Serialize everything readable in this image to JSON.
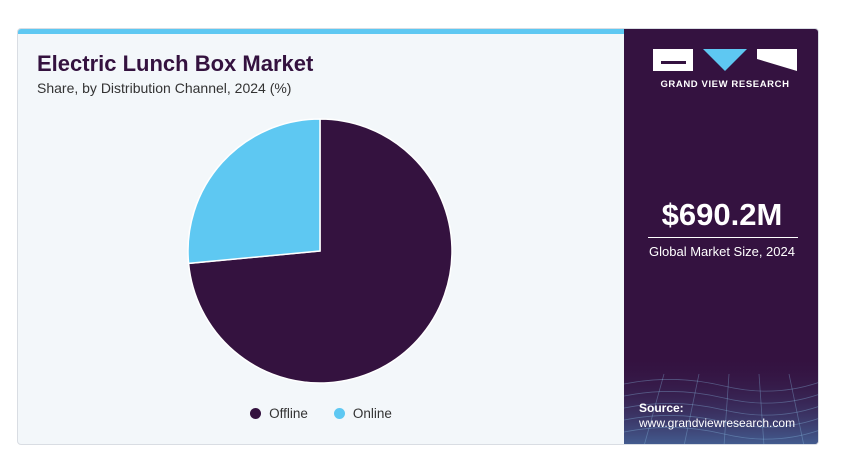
{
  "header": {
    "title": "Electric Lunch Box Market",
    "subtitle": "Share, by Distribution Channel, 2024 (%)"
  },
  "chart_data": {
    "type": "pie",
    "title": "Electric Lunch Box Market",
    "subtitle": "Share, by Distribution Channel, 2024 (%)",
    "categories": [
      "Offline",
      "Online"
    ],
    "values": [
      73.5,
      26.5
    ],
    "colors": [
      "#34123f",
      "#5ec8f2"
    ],
    "start_angle_deg": 0,
    "direction": "clockwise",
    "legend_position": "bottom"
  },
  "sidebar": {
    "brand": "GRAND VIEW RESEARCH",
    "market_size_value": "$690.2M",
    "market_size_label": "Global Market Size, 2024",
    "source_label": "Source:",
    "source_url": "www.grandviewresearch.com",
    "background_color": "#341240"
  },
  "icons": {
    "logo": "grand-view-research-logo-icon"
  }
}
